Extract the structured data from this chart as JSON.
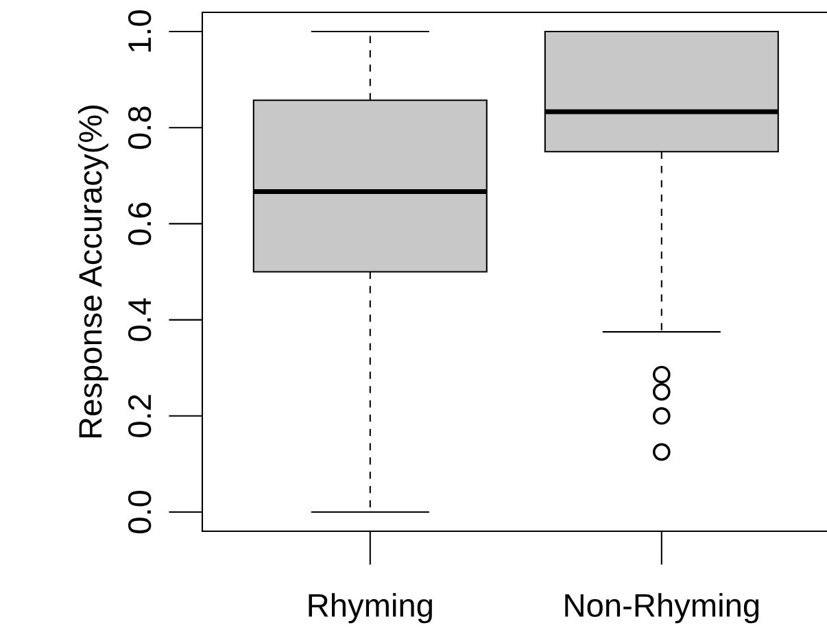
{
  "chart_data": {
    "type": "box",
    "ylabel": "Response Accuracy(%)",
    "categories": [
      "Rhyming",
      "Non-Rhyming"
    ],
    "color": "#c8c8c8",
    "boxes": [
      {
        "low": 0.0,
        "q1": 0.5,
        "median": 0.667,
        "q3": 0.857,
        "high": 1.0
      },
      {
        "low": 0.375,
        "q1": 0.75,
        "median": 0.833,
        "q3": 1.0,
        "high": 1.0,
        "outliers": [
          0.286,
          0.25,
          0.2,
          0.125
        ]
      }
    ],
    "ylim": [
      -0.04,
      1.04
    ],
    "yticks": [
      {
        "value": 0.0,
        "label": "0.0"
      },
      {
        "value": 0.2,
        "label": "0.2"
      },
      {
        "value": 0.4,
        "label": "0.4"
      },
      {
        "value": 0.6,
        "label": "0.6"
      },
      {
        "value": 0.8,
        "label": "0.8"
      },
      {
        "value": 1.0,
        "label": "1.0"
      }
    ],
    "grid": false
  }
}
